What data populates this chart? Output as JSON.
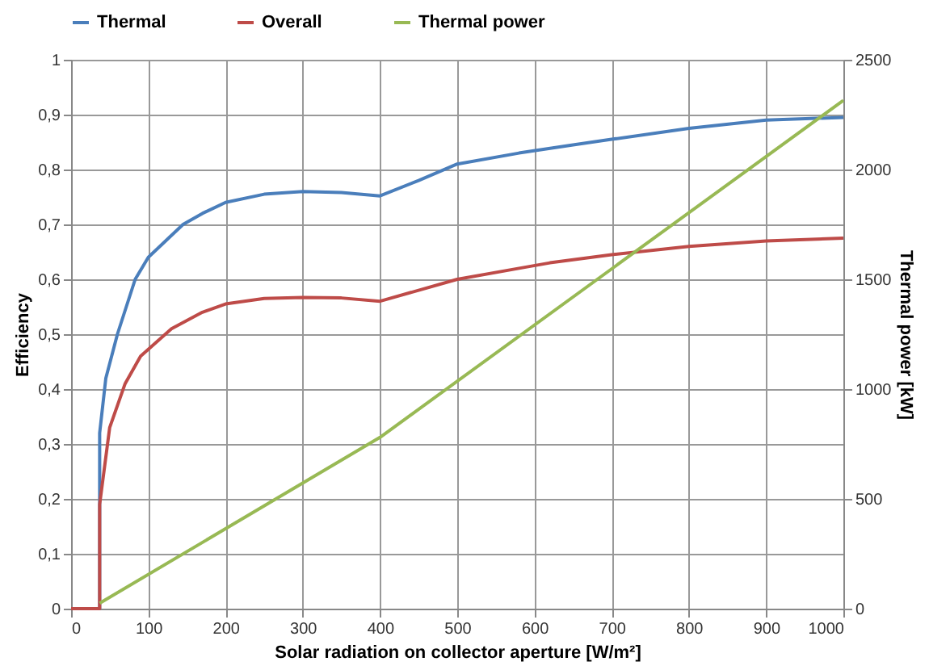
{
  "chart_data": {
    "type": "line",
    "xlabel": "Solar radiation on collector aperture [W/m²]",
    "ylabel": "Efficiency",
    "y2label": "Thermal power [kW]",
    "series": [
      {
        "name": "Thermal",
        "color": "#4a7ebb",
        "x": [
          0,
          37,
          37,
          45,
          60,
          83,
          100,
          145,
          170,
          200,
          250,
          300,
          350,
          400,
          450,
          500,
          580,
          650,
          700,
          800,
          900,
          1000
        ],
        "values": [
          0,
          0,
          0.32,
          0.42,
          0.5,
          0.6,
          0.64,
          0.7,
          0.72,
          0.74,
          0.755,
          0.76,
          0.758,
          0.752,
          0.78,
          0.81,
          0.83,
          0.845,
          0.855,
          0.875,
          0.89,
          0.895
        ]
      },
      {
        "name": "Overall",
        "color": "#be4b48",
        "x": [
          0,
          37,
          37,
          50,
          70,
          90,
          130,
          170,
          200,
          250,
          300,
          350,
          400,
          450,
          500,
          580,
          620,
          700,
          800,
          900,
          1000
        ],
        "values": [
          0,
          0,
          0.19,
          0.33,
          0.41,
          0.46,
          0.51,
          0.54,
          0.555,
          0.565,
          0.567,
          0.566,
          0.56,
          0.58,
          0.6,
          0.62,
          0.63,
          0.645,
          0.66,
          0.67,
          0.675
        ]
      },
      {
        "name": "Thermal power",
        "color": "#98b954",
        "axis": "y2",
        "x": [
          37,
          400,
          1000
        ],
        "values": [
          25,
          780,
          2315
        ]
      }
    ],
    "xlim": [
      0,
      1000
    ],
    "xticks": [
      0,
      100,
      200,
      300,
      400,
      500,
      600,
      700,
      800,
      900,
      1000
    ],
    "ylim": [
      0,
      1
    ],
    "yticks": [
      0,
      {
        "value": 0.1,
        "label": "0,1"
      },
      {
        "value": 0.2,
        "label": "0,2"
      },
      {
        "value": 0.3,
        "label": "0,3"
      },
      {
        "value": 0.4,
        "label": "0,4"
      },
      {
        "value": 0.5,
        "label": "0,5"
      },
      {
        "value": 0.6,
        "label": "0,6"
      },
      {
        "value": 0.7,
        "label": "0,7"
      },
      {
        "value": 0.8,
        "label": "0,8"
      },
      {
        "value": 0.9,
        "label": "0,9"
      },
      1
    ],
    "y2lim": [
      0,
      2500
    ],
    "y2ticks": [
      0,
      500,
      1000,
      1500,
      2000,
      2500
    ],
    "grid": true,
    "legend": "top"
  }
}
